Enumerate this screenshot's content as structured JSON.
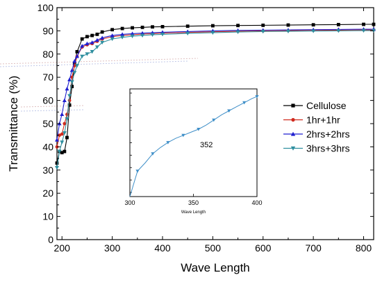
{
  "chart_data": {
    "type": "line",
    "xlabel": "Wave Length",
    "ylabel": "Transmittance (%)",
    "xlim": [
      190,
      820
    ],
    "ylim": [
      0,
      100
    ],
    "x_ticks": [
      200,
      300,
      400,
      500,
      600,
      700,
      800
    ],
    "y_ticks": [
      0,
      10,
      20,
      30,
      40,
      50,
      60,
      70,
      80,
      90,
      100
    ],
    "legend_position": "right",
    "series": [
      {
        "name": "Cellulose",
        "color": "#000000",
        "marker": "square",
        "x": [
          190,
          195,
          200,
          205,
          210,
          215,
          220,
          225,
          230,
          240,
          250,
          260,
          270,
          280,
          300,
          320,
          340,
          360,
          380,
          400,
          450,
          500,
          550,
          600,
          650,
          700,
          750,
          800,
          820
        ],
        "y": [
          33,
          38,
          37.5,
          38,
          44,
          58,
          66,
          76,
          81,
          86.5,
          87.5,
          88,
          88.5,
          89.5,
          90.5,
          91,
          91.3,
          91.5,
          91.7,
          91.8,
          92,
          92.2,
          92.3,
          92.4,
          92.5,
          92.6,
          92.7,
          92.8,
          92.8
        ]
      },
      {
        "name": "1hr+1hr",
        "color": "#d02a1e",
        "marker": "circle",
        "x": [
          190,
          195,
          200,
          205,
          210,
          215,
          220,
          225,
          230,
          240,
          250,
          260,
          270,
          280,
          300,
          320,
          340,
          360,
          380,
          400,
          450,
          500,
          550,
          600,
          650,
          700,
          750,
          800,
          820
        ],
        "y": [
          40,
          45,
          45.5,
          50,
          54,
          60,
          70,
          75,
          79,
          83,
          84,
          84.5,
          85.5,
          86.5,
          87.5,
          88,
          88.3,
          88.6,
          88.8,
          89,
          89.3,
          89.6,
          89.8,
          90,
          90.1,
          90.2,
          90.3,
          90.4,
          90.4
        ]
      },
      {
        "name": "2hrs+2hrs",
        "color": "#1f1fd0",
        "marker": "triangle-up",
        "x": [
          190,
          195,
          200,
          205,
          210,
          215,
          220,
          225,
          230,
          240,
          250,
          260,
          270,
          280,
          300,
          320,
          340,
          360,
          380,
          400,
          450,
          500,
          550,
          600,
          650,
          700,
          750,
          800,
          820
        ],
        "y": [
          43,
          50,
          54,
          60,
          65,
          69,
          73,
          77,
          79,
          83.5,
          84.5,
          85,
          86,
          87,
          88,
          88.5,
          88.8,
          89,
          89.2,
          89.4,
          89.7,
          90,
          90.2,
          90.3,
          90.4,
          90.5,
          90.6,
          90.7,
          90.7
        ]
      },
      {
        "name": "3hrs+3hrs",
        "color": "#2f8f9f",
        "marker": "triangle-down",
        "x": [
          190,
          195,
          200,
          205,
          210,
          215,
          220,
          225,
          230,
          240,
          250,
          260,
          270,
          280,
          300,
          320,
          340,
          360,
          380,
          400,
          450,
          500,
          550,
          600,
          650,
          700,
          750,
          800,
          820
        ],
        "y": [
          31,
          38,
          42,
          46,
          52,
          62,
          68,
          72,
          75,
          79,
          80,
          81,
          83,
          85,
          86.5,
          87.2,
          87.7,
          88,
          88.3,
          88.5,
          88.9,
          89.2,
          89.5,
          89.7,
          89.8,
          89.9,
          90,
          90.1,
          90.1
        ]
      }
    ],
    "inset": {
      "xlabel": "Wave Length",
      "annotation": "352",
      "xlim": [
        300,
        400
      ],
      "x_ticks": [
        300,
        350,
        400
      ],
      "series": {
        "color": "#3f8fc8",
        "marker": "triangle-down",
        "x": [
          300,
          306,
          312,
          318,
          324,
          330,
          336,
          342,
          348,
          354,
          360,
          366,
          372,
          378,
          384,
          390,
          396,
          400
        ],
        "y": [
          0,
          2.5,
          3.3,
          4.2,
          4.8,
          5.3,
          5.7,
          6.0,
          6.3,
          6.6,
          7.0,
          7.5,
          8.0,
          8.4,
          8.8,
          9.2,
          9.6,
          9.8
        ],
        "markers_every": 2
      }
    }
  }
}
